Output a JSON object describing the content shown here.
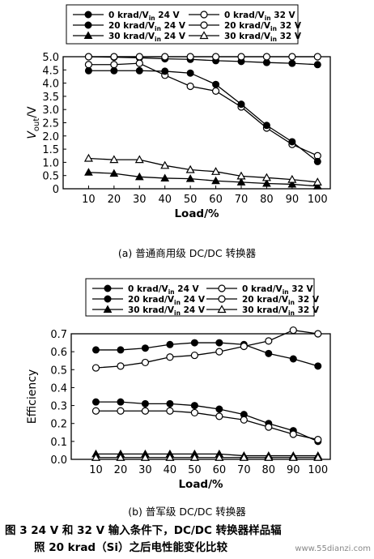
{
  "chart_data": [
    {
      "type": "line",
      "title": "",
      "xlabel": "Load/%",
      "ylabel": "Vout/V",
      "x": [
        10,
        20,
        30,
        40,
        50,
        60,
        70,
        80,
        90,
        100
      ],
      "xlim": [
        0,
        105
      ],
      "ylim": [
        0,
        5.0
      ],
      "yticks": [
        "0",
        "0.5",
        "1.0",
        "1.5",
        "2.0",
        "2.5",
        "3.0",
        "3.5",
        "4.0",
        "4.5",
        "5.0"
      ],
      "legend": "top",
      "series": [
        {
          "name": "0 krad/Vin 24 V",
          "marker": "filled-circle",
          "values": [
            5.0,
            4.98,
            4.96,
            4.92,
            4.9,
            4.85,
            4.82,
            4.78,
            4.75,
            4.7
          ]
        },
        {
          "name": "0 krad/Vin 32 V",
          "marker": "open-circle",
          "values": [
            4.7,
            4.7,
            4.75,
            4.3,
            3.88,
            3.7,
            3.1,
            2.3,
            1.68,
            1.25
          ]
        },
        {
          "name": "20 krad/Vin 24 V",
          "marker": "filled-circle",
          "values": [
            4.47,
            4.47,
            4.47,
            4.45,
            4.38,
            3.95,
            3.2,
            2.4,
            1.78,
            1.03
          ]
        },
        {
          "name": "20 krad/Vin 32 V",
          "marker": "open-circle",
          "values": [
            5.0,
            5.0,
            5.0,
            5.0,
            5.0,
            5.0,
            5.0,
            5.0,
            5.0,
            5.0
          ]
        },
        {
          "name": "30 krad/Vin 24 V",
          "marker": "filled-triangle",
          "values": [
            0.62,
            0.58,
            0.45,
            0.4,
            0.38,
            0.3,
            0.25,
            0.2,
            0.17,
            0.1
          ]
        },
        {
          "name": "30 krad/Vin 32 V",
          "marker": "open-triangle",
          "values": [
            1.15,
            1.1,
            1.1,
            0.88,
            0.72,
            0.65,
            0.48,
            0.42,
            0.35,
            0.25
          ]
        }
      ]
    },
    {
      "type": "line",
      "title": "",
      "xlabel": "Load/%",
      "ylabel": "Efficiency",
      "x": [
        10,
        20,
        30,
        40,
        50,
        60,
        70,
        80,
        90,
        100
      ],
      "xlim": [
        0,
        105
      ],
      "ylim": [
        0,
        0.7
      ],
      "yticks": [
        "0.0",
        "0.1",
        "0.2",
        "0.3",
        "0.4",
        "0.5",
        "0.6",
        "0.7"
      ],
      "legend": "top",
      "series": [
        {
          "name": "0 krad/Vin 24 V",
          "marker": "filled-circle",
          "values": [
            0.61,
            0.61,
            0.62,
            0.64,
            0.65,
            0.65,
            0.64,
            0.59,
            0.56,
            0.52
          ]
        },
        {
          "name": "0 krad/Vin 32 V",
          "marker": "open-circle",
          "values": [
            0.51,
            0.52,
            0.54,
            0.57,
            0.58,
            0.6,
            0.63,
            0.66,
            0.72,
            0.7
          ]
        },
        {
          "name": "20 krad/Vin 24 V",
          "marker": "filled-circle",
          "values": [
            0.32,
            0.32,
            0.31,
            0.31,
            0.3,
            0.28,
            0.25,
            0.2,
            0.16,
            0.1
          ]
        },
        {
          "name": "20 krad/Vin 32 V",
          "marker": "open-circle",
          "values": [
            0.27,
            0.27,
            0.27,
            0.27,
            0.26,
            0.24,
            0.22,
            0.18,
            0.14,
            0.11
          ]
        },
        {
          "name": "30 krad/Vin 24 V",
          "marker": "filled-triangle",
          "values": [
            0.03,
            0.03,
            0.03,
            0.03,
            0.03,
            0.03,
            0.02,
            0.02,
            0.02,
            0.02
          ]
        },
        {
          "name": "30 krad/Vin 32 V",
          "marker": "open-triangle",
          "values": [
            0.01,
            0.01,
            0.01,
            0.01,
            0.01,
            0.01,
            0.01,
            0.01,
            0.01,
            0.01
          ]
        }
      ]
    }
  ],
  "captions": {
    "a": "(a) 普通商用级 DC/DC 转换器",
    "b": "(b) 普军级 DC/DC 转换器",
    "figure_line1": "图 3   24 V 和 32 V 输入条件下，DC/DC 转换器样品辐",
    "figure_line2": "照 20 krad（Si）之后电性能变化比较"
  },
  "watermark": "www.55dianzi.com"
}
